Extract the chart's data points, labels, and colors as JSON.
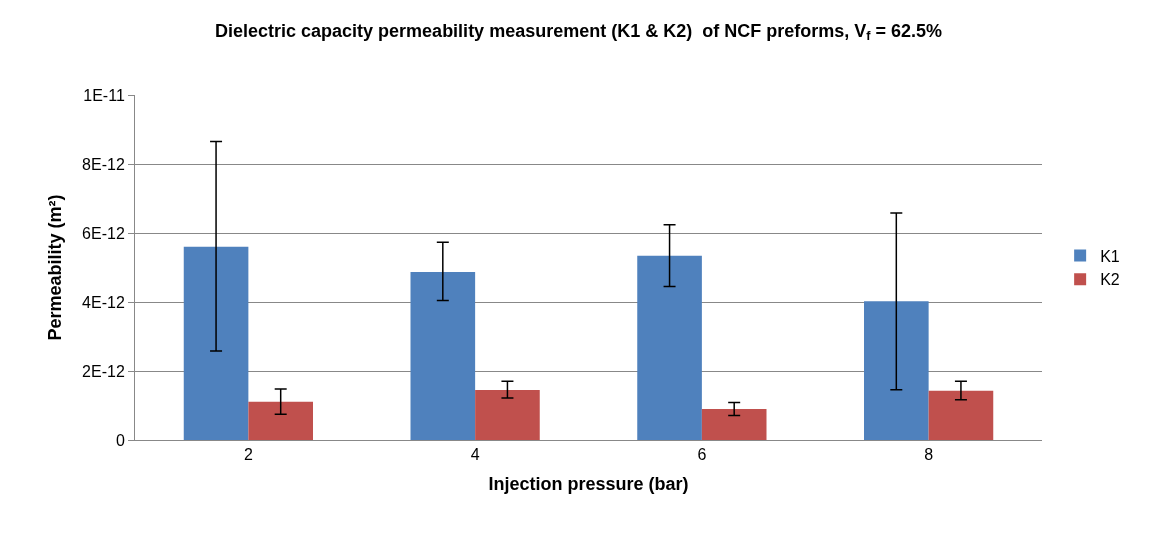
{
  "chart_data": {
    "type": "bar",
    "title": "Dielectric capacity permeability measurement (K1 & K2)  of NCF preforms, V$_{f}$ = 62.5%",
    "xlabel": "Injection pressure (bar)",
    "ylabel": "Permeability (m²)",
    "categories": [
      "2",
      "4",
      "6",
      "8"
    ],
    "series": [
      {
        "name": "K1",
        "color": "#4f81bd",
        "values": [
          5.6e-12,
          4.87e-12,
          5.34e-12,
          4.02e-12
        ],
        "errors": [
          [
            2.58e-12,
            8.65e-12
          ],
          [
            4.04e-12,
            5.73e-12
          ],
          [
            4.45e-12,
            6.24e-12
          ],
          [
            1.46e-12,
            6.58e-12
          ]
        ]
      },
      {
        "name": "K2",
        "color": "#c0504d",
        "values": [
          1.11e-12,
          1.45e-12,
          9e-13,
          1.43e-12
        ],
        "errors": [
          [
            7.5e-13,
            1.48e-12
          ],
          [
            1.22e-12,
            1.7e-12
          ],
          [
            7.1e-13,
            1.09e-12
          ],
          [
            1.17e-12,
            1.7e-12
          ]
        ]
      }
    ],
    "ylim": [
      0,
      1e-11
    ],
    "yticks": [
      0,
      {
        "value": 2e-12,
        "label": "2E-12"
      },
      {
        "value": 4e-12,
        "label": "4E-12"
      },
      {
        "value": 6e-12,
        "label": "6E-12"
      },
      {
        "value": 8e-12,
        "label": "8E-12"
      },
      {
        "value": 1e-11,
        "label": "1E-11"
      }
    ],
    "grid": "y",
    "legend": "right"
  }
}
